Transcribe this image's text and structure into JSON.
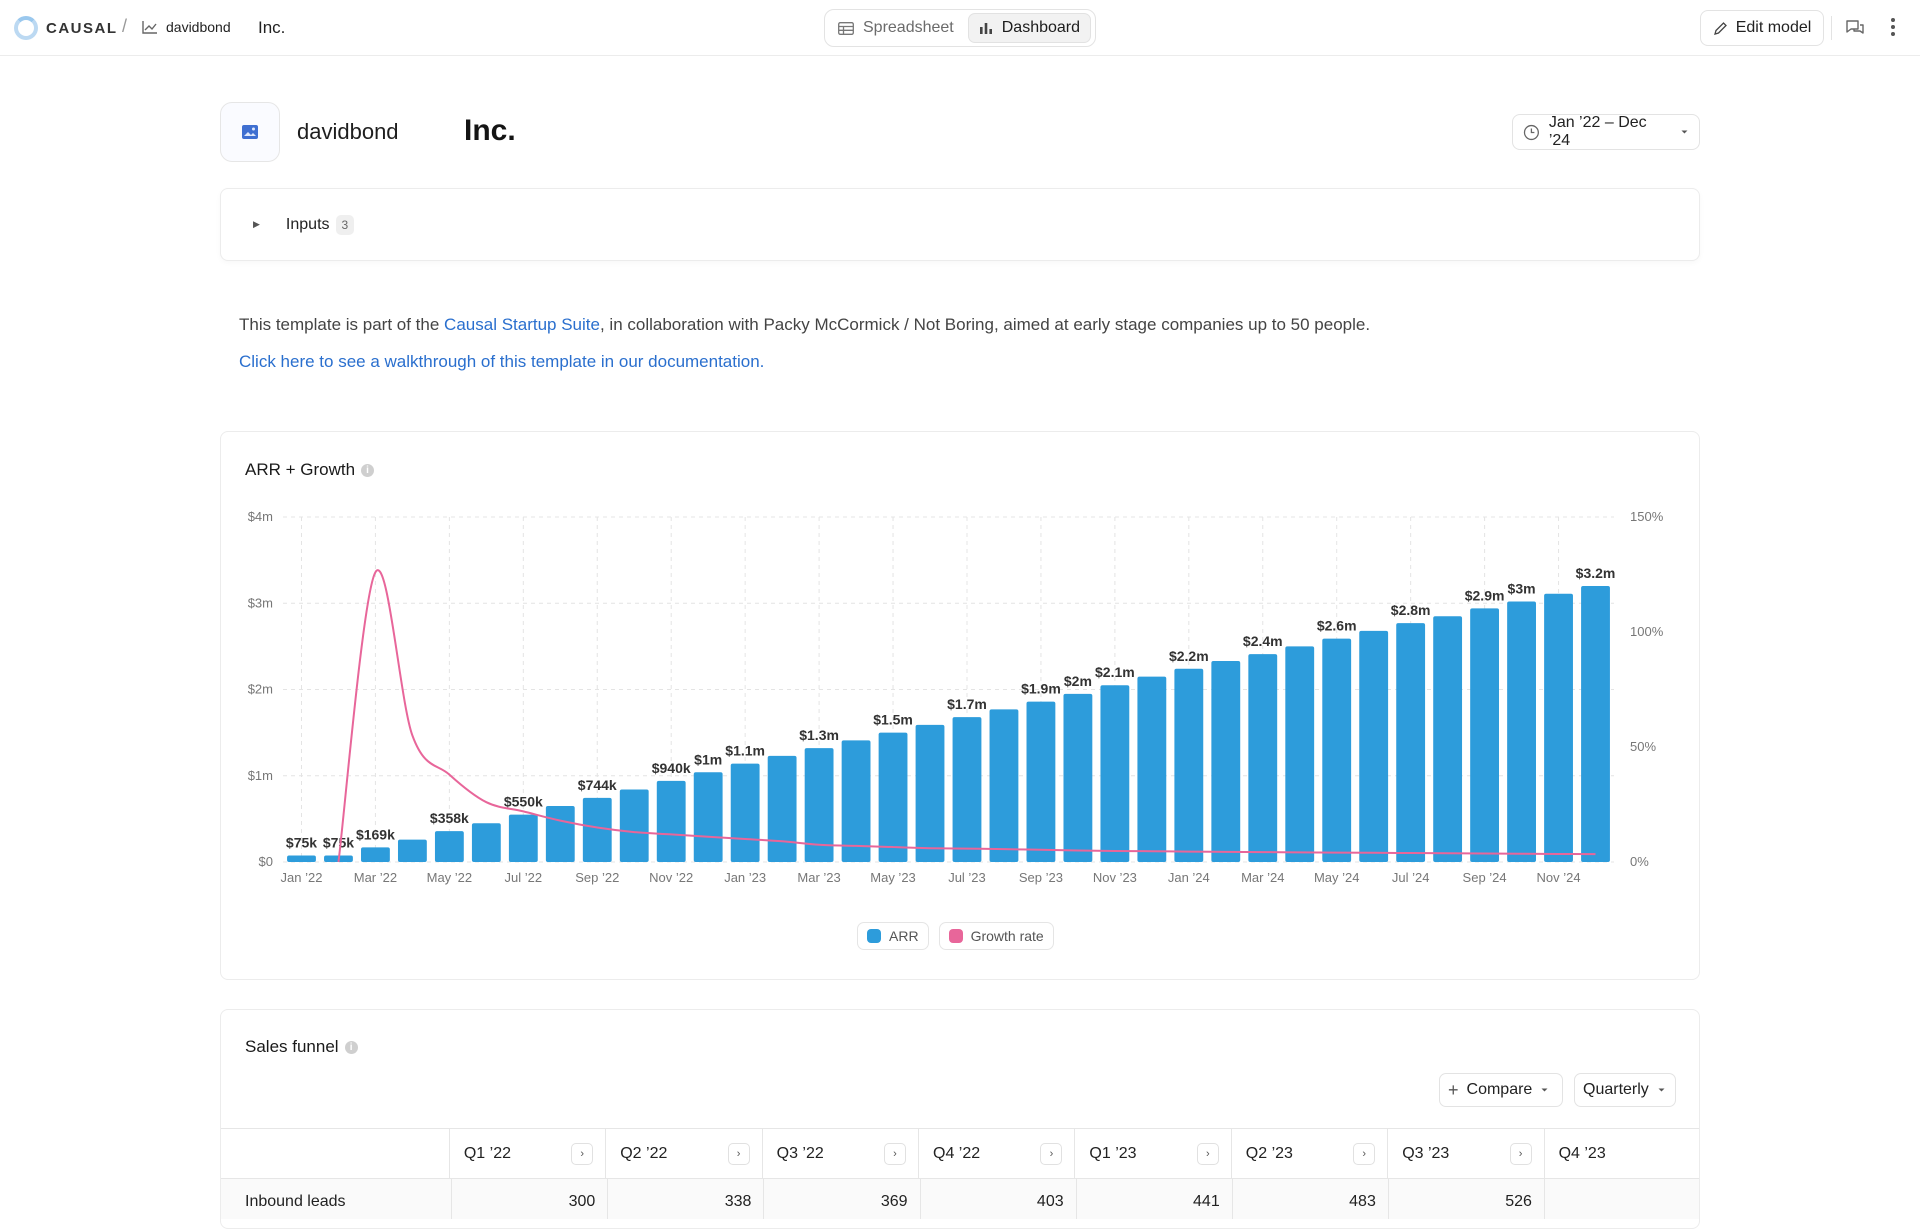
{
  "app": {
    "logo_text": "CAUSAL",
    "breadcrumb_sep": "/",
    "model_name": "davidbond",
    "title": "Inc."
  },
  "view_toggle": {
    "spreadsheet": "Spreadsheet",
    "dashboard": "Dashboard",
    "active": "dashboard"
  },
  "toolbar": {
    "edit_model": "Edit model"
  },
  "header": {
    "author": "davidbond",
    "title": "Inc.",
    "date_range": "Jan ’22 – Dec ’24"
  },
  "inputs": {
    "label": "Inputs",
    "count": "3"
  },
  "description": {
    "prefix": "This template is part of the ",
    "link": "Causal Startup Suite",
    "suffix": ", in collaboration with Packy McCormick / Not Boring, aimed at early stage companies up to 50 people.",
    "walkthrough": "Click here to see a walkthrough of this template in our documentation."
  },
  "colors": {
    "arr": "#2d9cdb",
    "growth": "#e8669a",
    "link": "#2a6fce"
  },
  "chart_data": {
    "type": "bar",
    "title": "ARR + Growth",
    "x": [
      "Jan ’22",
      "Feb ’22",
      "Mar ’22",
      "Apr ’22",
      "May ’22",
      "Jun ’22",
      "Jul ’22",
      "Aug ’22",
      "Sep ’22",
      "Oct ’22",
      "Nov ’22",
      "Dec ’22",
      "Jan ’23",
      "Feb ’23",
      "Mar ’23",
      "Apr ’23",
      "May ’23",
      "Jun ’23",
      "Jul ’23",
      "Aug ’23",
      "Sep ’23",
      "Oct ’23",
      "Nov ’23",
      "Dec ’23",
      "Jan ’24",
      "Feb ’24",
      "Mar ’24",
      "Apr ’24",
      "May ’24",
      "Jun ’24",
      "Jul ’24",
      "Aug ’24",
      "Sep ’24",
      "Oct ’24",
      "Nov ’24",
      "Dec ’24"
    ],
    "x_tick_labels": [
      "Jan ’22",
      "Mar ’22",
      "May ’22",
      "Jul ’22",
      "Sep ’22",
      "Nov ’22",
      "Jan ’23",
      "Mar ’23",
      "May ’23",
      "Jul ’23",
      "Sep ’23",
      "Nov ’23",
      "Jan ’24",
      "Mar ’24",
      "May ’24",
      "Jul ’24",
      "Sep ’24",
      "Nov ’24"
    ],
    "series": [
      {
        "name": "ARR",
        "axis": "left",
        "values": [
          75000,
          75000,
          169000,
          260000,
          358000,
          450000,
          550000,
          650000,
          744000,
          840000,
          940000,
          1040000,
          1140000,
          1230000,
          1320000,
          1410000,
          1500000,
          1590000,
          1680000,
          1770000,
          1860000,
          1950000,
          2050000,
          2150000,
          2240000,
          2330000,
          2410000,
          2500000,
          2590000,
          2680000,
          2770000,
          2850000,
          2940000,
          3020000,
          3110000,
          3200000
        ],
        "data_labels": [
          "$75k",
          "$75k",
          "$169k",
          "",
          "$358k",
          "",
          "$550k",
          "",
          "$744k",
          "",
          "$940k",
          "$1m",
          "$1.1m",
          "",
          "$1.3m",
          "",
          "$1.5m",
          "",
          "$1.7m",
          "",
          "$1.9m",
          "$2m",
          "$2.1m",
          "",
          "$2.2m",
          "",
          "$2.4m",
          "",
          "$2.6m",
          "",
          "$2.8m",
          "",
          "$2.9m",
          "$3m",
          "",
          "$3.2m"
        ]
      },
      {
        "name": "Growth rate",
        "axis": "right",
        "values": [
          null,
          0,
          1.26,
          0.55,
          0.38,
          0.26,
          0.22,
          0.18,
          0.15,
          0.13,
          0.12,
          0.11,
          0.1,
          0.09,
          0.075,
          0.07,
          0.065,
          0.06,
          0.058,
          0.056,
          0.053,
          0.05,
          0.048,
          0.047,
          0.045,
          0.044,
          0.043,
          0.042,
          0.041,
          0.04,
          0.039,
          0.038,
          0.037,
          0.036,
          0.035,
          0.034
        ]
      }
    ],
    "y_left": {
      "min": 0,
      "max": 4000000,
      "ticks": [
        0,
        1000000,
        2000000,
        3000000,
        4000000
      ],
      "tick_labels": [
        "$0",
        "$1m",
        "$2m",
        "$3m",
        "$4m"
      ]
    },
    "y_right": {
      "min": 0,
      "max": 1.5,
      "ticks": [
        0,
        0.5,
        1,
        1.5
      ],
      "tick_labels": [
        "0%",
        "50%",
        "100%",
        "150%"
      ]
    },
    "grid": true,
    "legend": "bottom-center"
  },
  "legend": {
    "arr": "ARR",
    "growth": "Growth rate"
  },
  "funnel": {
    "title": "Sales funnel",
    "compare": "Compare",
    "period": "Quarterly",
    "columns": [
      "Q1 ’22",
      "Q2 ’22",
      "Q3 ’22",
      "Q4 ’22",
      "Q1 ’23",
      "Q2 ’23",
      "Q3 ’23",
      "Q4 ’23"
    ],
    "rows": [
      {
        "label": "Inbound leads",
        "values": [
          "300",
          "338",
          "369",
          "403",
          "441",
          "483",
          "526",
          ""
        ]
      }
    ]
  }
}
